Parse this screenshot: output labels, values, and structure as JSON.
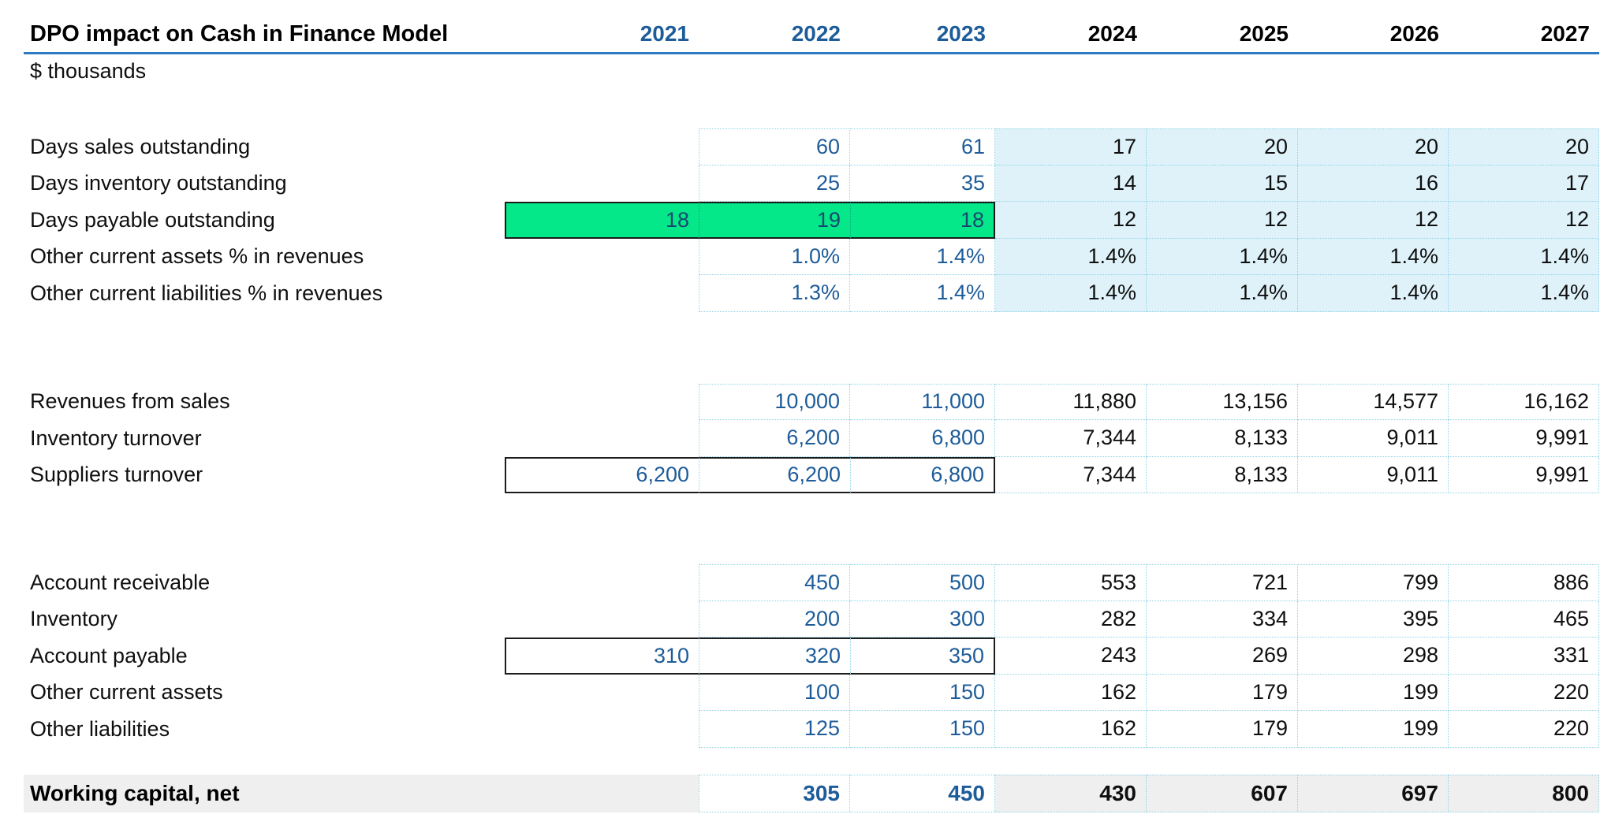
{
  "colors": {
    "accent_blue": "#1E5C99",
    "header_underline": "#2E7AC2",
    "dotted_border": "#8ED3E9",
    "forecast_fill": "#DFF2FA",
    "green_fill": "#04E88A",
    "green_text": "#17486F",
    "total_fill": "#EFEFEF",
    "box_border": "#1C1C1C",
    "text_black": "#0F0F0F"
  },
  "table": {
    "title": "DPO impact on Cash in Finance Model",
    "units": "$ thousands",
    "years": [
      "2021",
      "2022",
      "2023",
      "2024",
      "2025",
      "2026",
      "2027"
    ],
    "historical_year_count": 3,
    "sections": [
      {
        "name": "assumptions",
        "forecast_fill": "blue",
        "rows": [
          {
            "label": "Days sales outstanding",
            "values": [
              "",
              "60",
              "61",
              "17",
              "20",
              "20",
              "20"
            ],
            "box": null
          },
          {
            "label": "Days inventory outstanding",
            "values": [
              "",
              "25",
              "35",
              "14",
              "15",
              "16",
              "17"
            ],
            "box": null
          },
          {
            "label": "Days payable outstanding",
            "values": [
              "18",
              "19",
              "18",
              "12",
              "12",
              "12",
              "12"
            ],
            "box": "green"
          },
          {
            "label": "Other current assets % in revenues",
            "values": [
              "",
              "1.0%",
              "1.4%",
              "1.4%",
              "1.4%",
              "1.4%",
              "1.4%"
            ],
            "box": null
          },
          {
            "label": "Other current liabilities % in revenues",
            "values": [
              "",
              "1.3%",
              "1.4%",
              "1.4%",
              "1.4%",
              "1.4%",
              "1.4%"
            ],
            "box": null
          }
        ]
      },
      {
        "name": "turnover",
        "forecast_fill": "white",
        "rows": [
          {
            "label": "Revenues from sales",
            "values": [
              "",
              "10,000",
              "11,000",
              "11,880",
              "13,156",
              "14,577",
              "16,162"
            ],
            "box": null
          },
          {
            "label": "Inventory turnover",
            "values": [
              "",
              "6,200",
              "6,800",
              "7,344",
              "8,133",
              "9,011",
              "9,991"
            ],
            "box": null
          },
          {
            "label": "Suppliers turnover",
            "values": [
              "6,200",
              "6,200",
              "6,800",
              "7,344",
              "8,133",
              "9,011",
              "9,991"
            ],
            "box": "outline"
          }
        ]
      },
      {
        "name": "balances",
        "forecast_fill": "white",
        "rows": [
          {
            "label": "Account receivable",
            "values": [
              "",
              "450",
              "500",
              "553",
              "721",
              "799",
              "886"
            ],
            "box": null
          },
          {
            "label": "Inventory",
            "values": [
              "",
              "200",
              "300",
              "282",
              "334",
              "395",
              "465"
            ],
            "box": null
          },
          {
            "label": "Account payable",
            "values": [
              "310",
              "320",
              "350",
              "243",
              "269",
              "298",
              "331"
            ],
            "box": "outline"
          },
          {
            "label": "Other current assets",
            "values": [
              "",
              "100",
              "150",
              "162",
              "179",
              "199",
              "220"
            ],
            "box": null
          },
          {
            "label": "Other liabilities",
            "values": [
              "",
              "125",
              "150",
              "162",
              "179",
              "199",
              "220"
            ],
            "box": null
          }
        ]
      }
    ],
    "total_row": {
      "label": "Working capital, net",
      "values": [
        "",
        "305",
        "450",
        "430",
        "607",
        "697",
        "800"
      ]
    }
  }
}
